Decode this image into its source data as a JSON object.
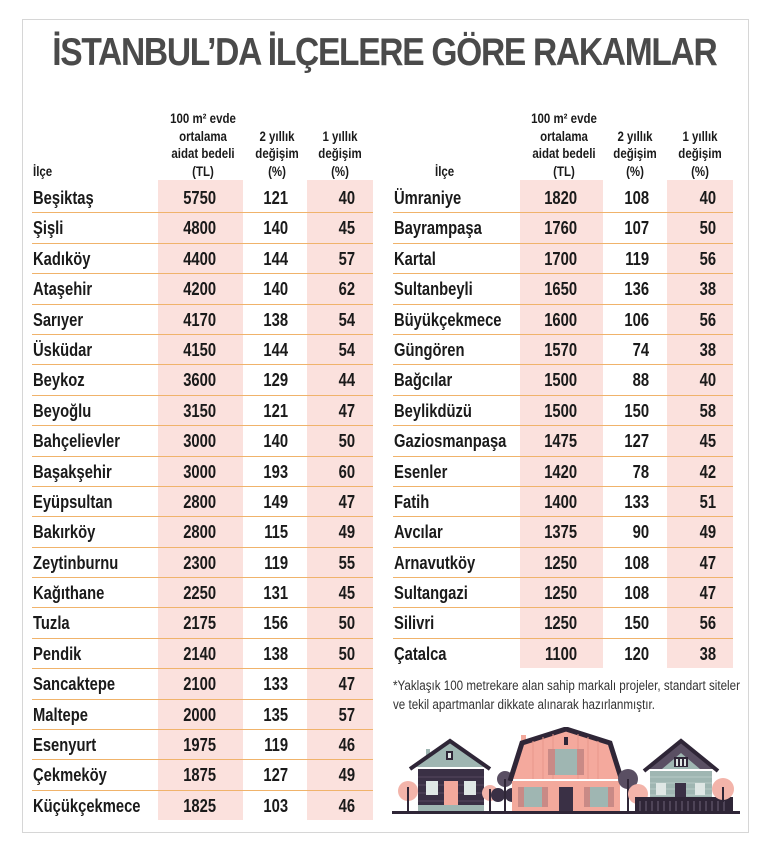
{
  "title": "İSTANBUL’DA İLÇELERE GÖRE RAKAMLAR",
  "headers": {
    "district": "İlçe",
    "fee": "100 m² evde\nortalama\naidat bedeli\n(TL)",
    "change2y": "2 yıllık\ndeğişim\n(%)",
    "change1y": "1 yıllık\ndeğişim\n(%)"
  },
  "left_table": {
    "rows": [
      {
        "district": "Beşiktaş",
        "fee": "5750",
        "change2y": "121",
        "change1y": "40"
      },
      {
        "district": "Şişli",
        "fee": "4800",
        "change2y": "140",
        "change1y": "45"
      },
      {
        "district": "Kadıköy",
        "fee": "4400",
        "change2y": "144",
        "change1y": "57"
      },
      {
        "district": "Ataşehir",
        "fee": "4200",
        "change2y": "140",
        "change1y": "62"
      },
      {
        "district": "Sarıyer",
        "fee": "4170",
        "change2y": "138",
        "change1y": "54"
      },
      {
        "district": "Üsküdar",
        "fee": "4150",
        "change2y": "144",
        "change1y": "54"
      },
      {
        "district": "Beykoz",
        "fee": "3600",
        "change2y": "129",
        "change1y": "44"
      },
      {
        "district": "Beyoğlu",
        "fee": "3150",
        "change2y": "121",
        "change1y": "47"
      },
      {
        "district": "Bahçelievler",
        "fee": "3000",
        "change2y": "140",
        "change1y": "50"
      },
      {
        "district": "Başakşehir",
        "fee": "3000",
        "change2y": "193",
        "change1y": "60"
      },
      {
        "district": "Eyüpsultan",
        "fee": "2800",
        "change2y": "149",
        "change1y": "47"
      },
      {
        "district": "Bakırköy",
        "fee": "2800",
        "change2y": "115",
        "change1y": "49"
      },
      {
        "district": "Zeytinburnu",
        "fee": "2300",
        "change2y": "119",
        "change1y": "55"
      },
      {
        "district": "Kağıthane",
        "fee": "2250",
        "change2y": "131",
        "change1y": "45"
      },
      {
        "district": "Tuzla",
        "fee": "2175",
        "change2y": "156",
        "change1y": "50"
      },
      {
        "district": "Pendik",
        "fee": "2140",
        "change2y": "138",
        "change1y": "50"
      },
      {
        "district": "Sancaktepe",
        "fee": "2100",
        "change2y": "133",
        "change1y": "47"
      },
      {
        "district": "Maltepe",
        "fee": "2000",
        "change2y": "135",
        "change1y": "57"
      },
      {
        "district": "Esenyurt",
        "fee": "1975",
        "change2y": "119",
        "change1y": "46"
      },
      {
        "district": "Çekmeköy",
        "fee": "1875",
        "change2y": "127",
        "change1y": "49"
      },
      {
        "district": "Küçükçekmece",
        "fee": "1825",
        "change2y": "103",
        "change1y": "46"
      }
    ]
  },
  "right_table": {
    "rows": [
      {
        "district": "Ümraniye",
        "fee": "1820",
        "change2y": "108",
        "change1y": "40"
      },
      {
        "district": "Bayrampaşa",
        "fee": "1760",
        "change2y": "107",
        "change1y": "50"
      },
      {
        "district": "Kartal",
        "fee": "1700",
        "change2y": "119",
        "change1y": "56"
      },
      {
        "district": "Sultanbeyli",
        "fee": "1650",
        "change2y": "136",
        "change1y": "38"
      },
      {
        "district": "Büyükçekmece",
        "fee": "1600",
        "change2y": "106",
        "change1y": "56"
      },
      {
        "district": "Güngören",
        "fee": "1570",
        "change2y": "74",
        "change1y": "38"
      },
      {
        "district": "Bağcılar",
        "fee": "1500",
        "change2y": "88",
        "change1y": "40"
      },
      {
        "district": "Beylikdüzü",
        "fee": "1500",
        "change2y": "150",
        "change1y": "58"
      },
      {
        "district": "Gaziosmanpaşa",
        "fee": "1475",
        "change2y": "127",
        "change1y": "45"
      },
      {
        "district": "Esenler",
        "fee": "1420",
        "change2y": "78",
        "change1y": "42"
      },
      {
        "district": "Fatih",
        "fee": "1400",
        "change2y": "133",
        "change1y": "51"
      },
      {
        "district": "Avcılar",
        "fee": "1375",
        "change2y": "90",
        "change1y": "49"
      },
      {
        "district": "Arnavutköy",
        "fee": "1250",
        "change2y": "108",
        "change1y": "47"
      },
      {
        "district": "Sultangazi",
        "fee": "1250",
        "change2y": "108",
        "change1y": "47"
      },
      {
        "district": "Silivri",
        "fee": "1250",
        "change2y": "150",
        "change1y": "56"
      },
      {
        "district": "Çatalca",
        "fee": "1100",
        "change2y": "120",
        "change1y": "38"
      }
    ]
  },
  "footnote": "*Yaklaşık 100 metrekare alan sahip markalı projeler, standart siteler ve tekil apartmanlar dikkate alınarak hazırlanmıştır.",
  "illustration": "houses-illustration",
  "colors": {
    "title": "#4a4a4a",
    "highlight_column": "#fbe1dd",
    "row_separator": "#f0b36b",
    "text": "#1a1a1a"
  },
  "chart_data": {
    "type": "table",
    "title": "İSTANBUL’DA İLÇELERE GÖRE RAKAMLAR",
    "columns": [
      "İlçe",
      "100 m² evde ortalama aidat bedeli (TL)",
      "2 yıllık değişim (%)",
      "1 yıllık değişim (%)"
    ],
    "rows": [
      [
        "Beşiktaş",
        5750,
        121,
        40
      ],
      [
        "Şişli",
        4800,
        140,
        45
      ],
      [
        "Kadıköy",
        4400,
        144,
        57
      ],
      [
        "Ataşehir",
        4200,
        140,
        62
      ],
      [
        "Sarıyer",
        4170,
        138,
        54
      ],
      [
        "Üsküdar",
        4150,
        144,
        54
      ],
      [
        "Beykoz",
        3600,
        129,
        44
      ],
      [
        "Beyoğlu",
        3150,
        121,
        47
      ],
      [
        "Bahçelievler",
        3000,
        140,
        50
      ],
      [
        "Başakşehir",
        3000,
        193,
        60
      ],
      [
        "Eyüpsultan",
        2800,
        149,
        47
      ],
      [
        "Bakırköy",
        2800,
        115,
        49
      ],
      [
        "Zeytinburnu",
        2300,
        119,
        55
      ],
      [
        "Kağıthane",
        2250,
        131,
        45
      ],
      [
        "Tuzla",
        2175,
        156,
        50
      ],
      [
        "Pendik",
        2140,
        138,
        50
      ],
      [
        "Sancaktepe",
        2100,
        133,
        47
      ],
      [
        "Maltepe",
        2000,
        135,
        57
      ],
      [
        "Esenyurt",
        1975,
        119,
        46
      ],
      [
        "Çekmeköy",
        1875,
        127,
        49
      ],
      [
        "Küçükçekmece",
        1825,
        103,
        46
      ],
      [
        "Ümraniye",
        1820,
        108,
        40
      ],
      [
        "Bayrampaşa",
        1760,
        107,
        50
      ],
      [
        "Kartal",
        1700,
        119,
        56
      ],
      [
        "Sultanbeyli",
        1650,
        136,
        38
      ],
      [
        "Büyükçekmece",
        1600,
        106,
        56
      ],
      [
        "Güngören",
        1570,
        74,
        38
      ],
      [
        "Bağcılar",
        1500,
        88,
        40
      ],
      [
        "Beylikdüzü",
        1500,
        150,
        58
      ],
      [
        "Gaziosmanpaşa",
        1475,
        127,
        45
      ],
      [
        "Esenler",
        1420,
        78,
        42
      ],
      [
        "Fatih",
        1400,
        133,
        51
      ],
      [
        "Avcılar",
        1375,
        90,
        49
      ],
      [
        "Arnavutköy",
        1250,
        108,
        47
      ],
      [
        "Sultangazi",
        1250,
        108,
        47
      ],
      [
        "Silivri",
        1250,
        150,
        56
      ],
      [
        "Çatalca",
        1100,
        120,
        38
      ]
    ],
    "footnote": "*Yaklaşık 100 metrekare alan sahip markalı projeler, standart siteler ve tekil apartmanlar dikkate alınarak hazırlanmıştır."
  }
}
